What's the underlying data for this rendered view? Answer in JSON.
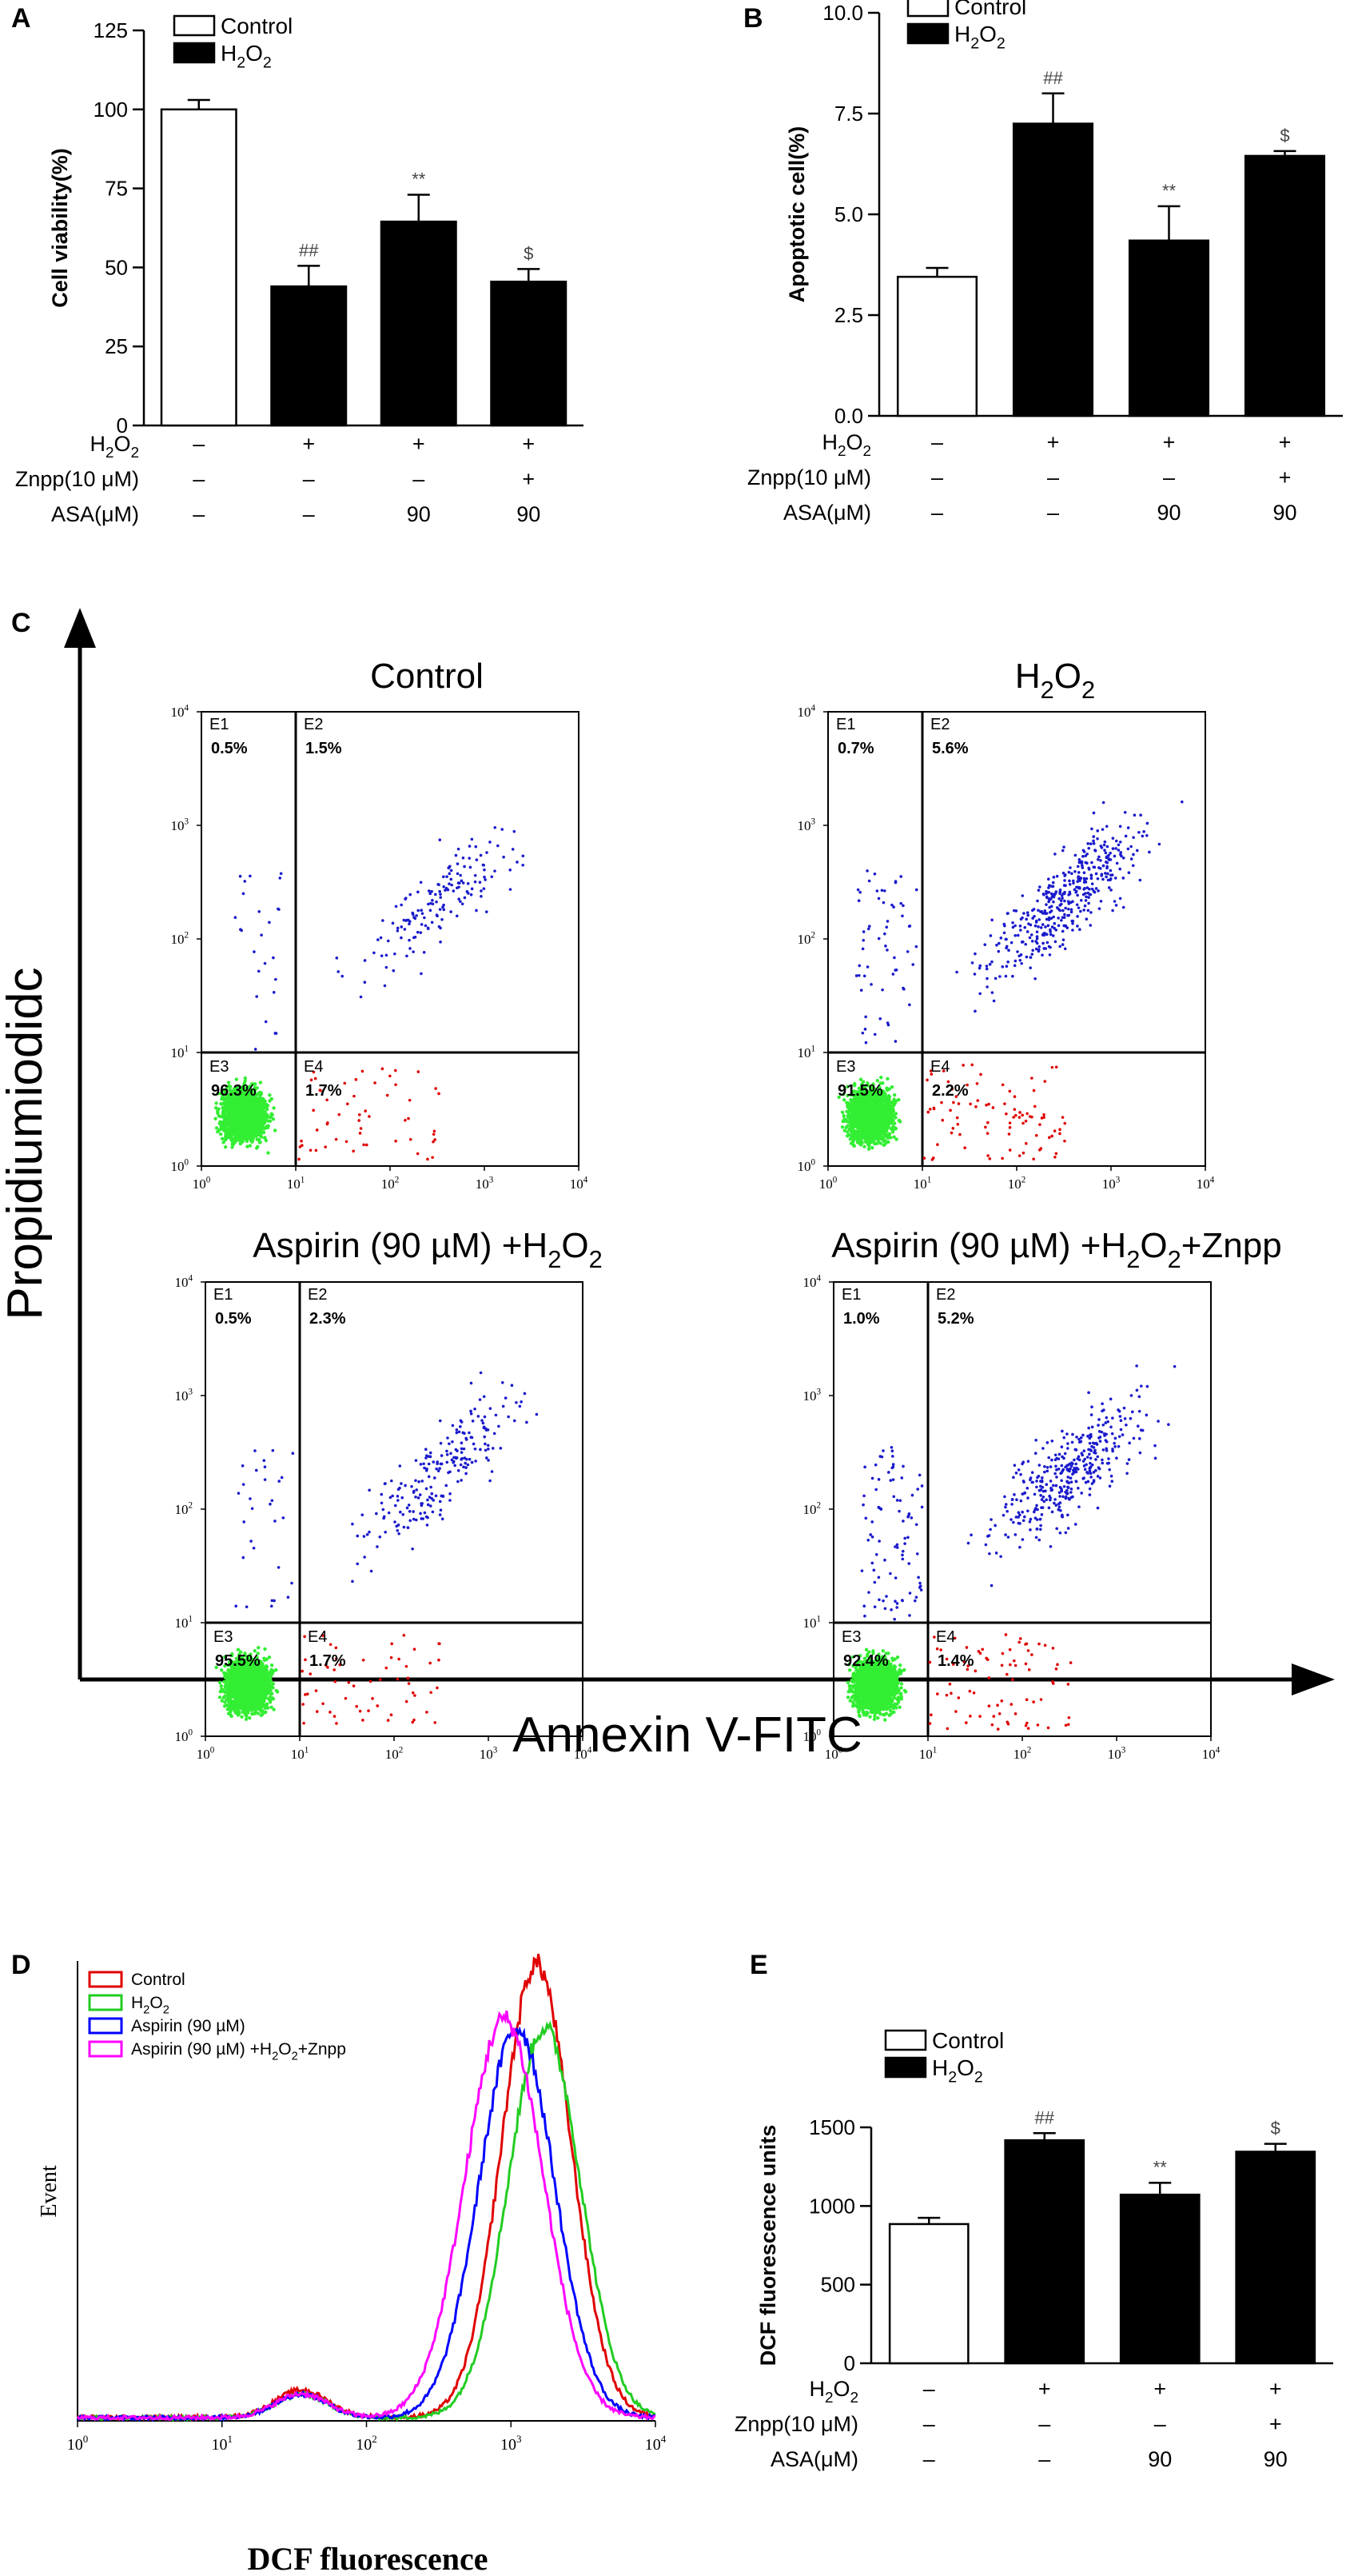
{
  "panel_letters": {
    "A": "A",
    "B": "B",
    "C": "C",
    "D": "D",
    "E": "E"
  },
  "chart_data": [
    {
      "type": "bar",
      "panel": "A",
      "ylabel": "Cell viability(%)",
      "ylim": [
        0,
        125
      ],
      "yticks": [
        "0",
        "25",
        "50",
        "75",
        "100",
        "125"
      ],
      "legend": [
        "Control",
        "H2O2"
      ],
      "series": [
        {
          "values": [
            100,
            44,
            64.5,
            45.5
          ],
          "errors": [
            3,
            6.5,
            8.5,
            4
          ],
          "fills": [
            "#ffffff",
            "#000000",
            "#000000",
            "#000000"
          ]
        }
      ],
      "marks": [
        "",
        "##",
        "**",
        "$"
      ],
      "treatment_rows": [
        {
          "label": "H2O2",
          "cells": [
            "–",
            "+",
            "+",
            "+"
          ]
        },
        {
          "label": "Znpp(10 μM)",
          "cells": [
            "–",
            "–",
            "–",
            "+"
          ]
        },
        {
          "label": "ASA(μM)",
          "cells": [
            "–",
            "–",
            "90",
            "90"
          ]
        }
      ]
    },
    {
      "type": "bar",
      "panel": "B",
      "ylabel": "Apoptotic cell(%)",
      "ylim": [
        0,
        10
      ],
      "yticks": [
        "0.0",
        "2.5",
        "5.0",
        "7.5",
        "10.0"
      ],
      "legend": [
        "Control",
        "H2O2"
      ],
      "series": [
        {
          "values": [
            3.45,
            7.25,
            4.35,
            6.45
          ],
          "errors": [
            0.22,
            0.75,
            0.85,
            0.12
          ],
          "fills": [
            "#ffffff",
            "#000000",
            "#000000",
            "#000000"
          ]
        }
      ],
      "marks": [
        "",
        "##",
        "**",
        "$"
      ],
      "treatment_rows": [
        {
          "label": "H2O2",
          "cells": [
            "–",
            "+",
            "+",
            "+"
          ]
        },
        {
          "label": "Znpp(10 μM)",
          "cells": [
            "–",
            "–",
            "–",
            "+"
          ]
        },
        {
          "label": "ASA(μM)",
          "cells": [
            "–",
            "–",
            "90",
            "90"
          ]
        }
      ]
    },
    {
      "type": "scatter",
      "panel": "C",
      "xlabel": "Annexin V-FITC",
      "ylabel": "Propidiumiodidc",
      "xscale": "log",
      "yscale": "log",
      "axis_ticks": [
        "10",
        "10",
        "10",
        "10",
        "10"
      ],
      "tick_exponents": [
        "0",
        "1",
        "2",
        "3",
        "4"
      ],
      "quadrant_labels": [
        "E1",
        "E2",
        "E3",
        "E4"
      ],
      "plots": [
        {
          "title": "Control",
          "quadrants": [
            "0.5%",
            "1.5%",
            "96.3%",
            "1.7%"
          ]
        },
        {
          "title": "H2O2",
          "quadrants": [
            "0.7%",
            "5.6%",
            "91.5%",
            "2.2%"
          ]
        },
        {
          "title": "Aspirin (90 µM) +H2O2",
          "quadrants": [
            "0.5%",
            "2.3%",
            "95.5%",
            "1.7%"
          ]
        },
        {
          "title": "Aspirin (90 µM) +H2O2+Znpp",
          "quadrants": [
            "1.0%",
            "5.2%",
            "92.4%",
            "1.4%"
          ]
        }
      ]
    },
    {
      "type": "line",
      "panel": "D",
      "xlabel": "DCF fluorescence",
      "ylabel": "Event",
      "xscale": "log",
      "x_ticks": [
        "10",
        "10",
        "10",
        "10",
        "10"
      ],
      "tick_exponents": [
        "0",
        "1",
        "2",
        "3",
        "4"
      ],
      "series": [
        {
          "name": "Control",
          "color": "#e00000",
          "peak_x": 1500
        },
        {
          "name": "H2O2",
          "color": "#22cc22",
          "peak_x": 1700
        },
        {
          "name": "Aspirin (90 µM)",
          "color": "#0000ff",
          "peak_x": 1100
        },
        {
          "name": "Aspirin (90 µM) +H2O2+Znpp",
          "color": "#ff00ff",
          "peak_x": 900
        }
      ]
    },
    {
      "type": "bar",
      "panel": "E",
      "ylabel": "DCF fluorescence units",
      "ylim": [
        0,
        1500
      ],
      "yticks": [
        "0",
        "500",
        "1000",
        "1500"
      ],
      "legend": [
        "Control",
        "H2O2"
      ],
      "series": [
        {
          "values": [
            885,
            1418,
            1072,
            1345
          ],
          "errors": [
            40,
            45,
            75,
            50
          ],
          "fills": [
            "#ffffff",
            "#000000",
            "#000000",
            "#000000"
          ]
        }
      ],
      "marks": [
        "",
        "##",
        "**",
        "$"
      ],
      "treatment_rows": [
        {
          "label": "H2O2",
          "cells": [
            "–",
            "+",
            "+",
            "+"
          ]
        },
        {
          "label": "Znpp(10 μM)",
          "cells": [
            "–",
            "–",
            "–",
            "+"
          ]
        },
        {
          "label": "ASA(μM)",
          "cells": [
            "–",
            "–",
            "90",
            "90"
          ]
        }
      ]
    }
  ]
}
